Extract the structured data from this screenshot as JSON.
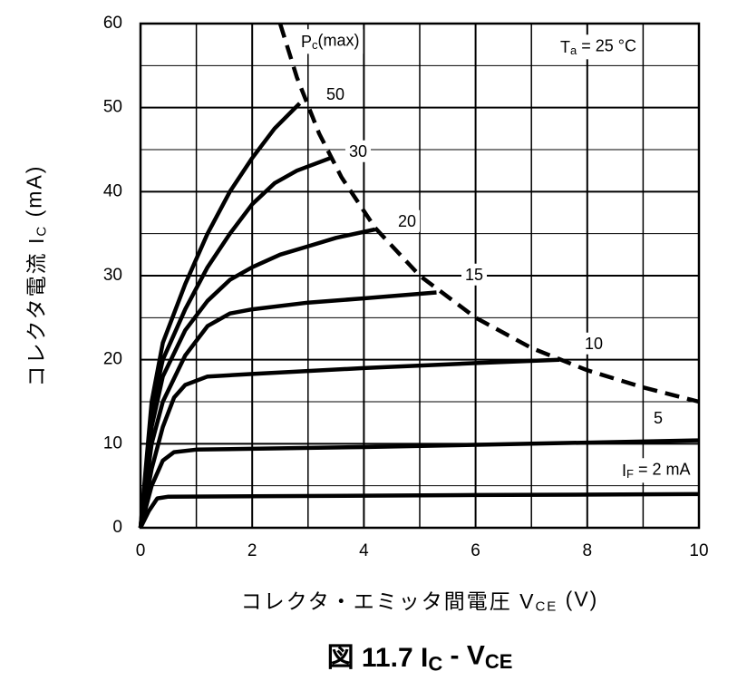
{
  "chart_data": {
    "type": "line",
    "xlim": [
      0,
      10
    ],
    "ylim": [
      0,
      60
    ],
    "xticks": [
      0,
      2,
      4,
      6,
      8,
      10
    ],
    "yticks": [
      0,
      10,
      20,
      30,
      40,
      50,
      60
    ],
    "x_minor_grid": [
      1,
      3,
      5,
      7,
      9
    ],
    "y_minor_grid": [
      5,
      15,
      25,
      35,
      45,
      55
    ],
    "grid": true,
    "color": "#000000",
    "x_label": [
      {
        "text": "コレクタ・エミッタ間電圧 V"
      },
      {
        "text": "CE",
        "sub": true
      },
      {
        "text": " (V)"
      }
    ],
    "y_label": [
      {
        "text": "コレクタ電流 I"
      },
      {
        "text": "C",
        "sub": true
      },
      {
        "text": " (mA)"
      }
    ],
    "caption": [
      {
        "text": "図 11.7 I"
      },
      {
        "text": "C",
        "sub": true
      },
      {
        "text": " - V"
      },
      {
        "text": "CE",
        "sub": true
      }
    ],
    "annotation": [
      {
        "text": "T"
      },
      {
        "text": "a",
        "sub": true
      },
      {
        "text": " = 25 °C"
      }
    ],
    "series": [
      {
        "name": [
          {
            "text": "50"
          }
        ],
        "x": [
          0,
          0.2,
          0.4,
          0.8,
          1.2,
          1.6,
          2,
          2.4,
          2.85
        ],
        "values": [
          0,
          15,
          22,
          29,
          35,
          40,
          44,
          47.5,
          50.5
        ]
      },
      {
        "name": [
          {
            "text": "30"
          }
        ],
        "x": [
          0,
          0.2,
          0.4,
          0.8,
          1.2,
          1.6,
          2,
          2.4,
          2.8,
          3.4
        ],
        "values": [
          0,
          14,
          20,
          26,
          31,
          35,
          38.5,
          41,
          42.5,
          44
        ]
      },
      {
        "name": [
          {
            "text": "20"
          }
        ],
        "x": [
          0,
          0.2,
          0.4,
          0.8,
          1.2,
          1.6,
          2,
          2.5,
          3,
          3.5,
          4.2
        ],
        "values": [
          0,
          12,
          18,
          23.5,
          27,
          29.5,
          31,
          32.5,
          33.5,
          34.5,
          35.5
        ]
      },
      {
        "name": [
          {
            "text": "15"
          }
        ],
        "x": [
          0,
          0.2,
          0.4,
          0.8,
          1.2,
          1.6,
          2,
          3,
          4,
          5.3
        ],
        "values": [
          0,
          10,
          15,
          20.5,
          24,
          25.5,
          26,
          26.8,
          27.3,
          28
        ]
      },
      {
        "name": [
          {
            "text": "10"
          }
        ],
        "x": [
          0,
          0.2,
          0.4,
          0.6,
          0.8,
          1.2,
          2,
          4,
          6,
          7.5
        ],
        "values": [
          0,
          7,
          12,
          15.5,
          17,
          18,
          18.3,
          19,
          19.6,
          20
        ]
      },
      {
        "name": [
          {
            "text": "5"
          }
        ],
        "x": [
          0,
          0.2,
          0.4,
          0.6,
          1,
          4,
          7,
          10
        ],
        "values": [
          0,
          5,
          8,
          9,
          9.3,
          9.6,
          10,
          10.4
        ]
      },
      {
        "name": [
          {
            "text": "I"
          },
          {
            "text": "F",
            "sub": true
          },
          {
            "text": " = 2 mA"
          }
        ],
        "x": [
          0,
          0.15,
          0.3,
          0.5,
          2,
          6,
          10
        ],
        "values": [
          0,
          2,
          3.5,
          3.7,
          3.75,
          3.9,
          4
        ]
      },
      {
        "name": [
          {
            "text": "P"
          },
          {
            "text": "c",
            "sub": true
          },
          {
            "text": "(max)"
          }
        ],
        "dashed": true,
        "x": [
          2.5,
          2.8,
          3.2,
          3.6,
          4.2,
          5,
          6,
          7,
          8,
          9,
          10
        ],
        "values": [
          60,
          53.6,
          46.9,
          41.7,
          35.7,
          30,
          25,
          21.4,
          18.75,
          16.7,
          15
        ]
      }
    ]
  }
}
